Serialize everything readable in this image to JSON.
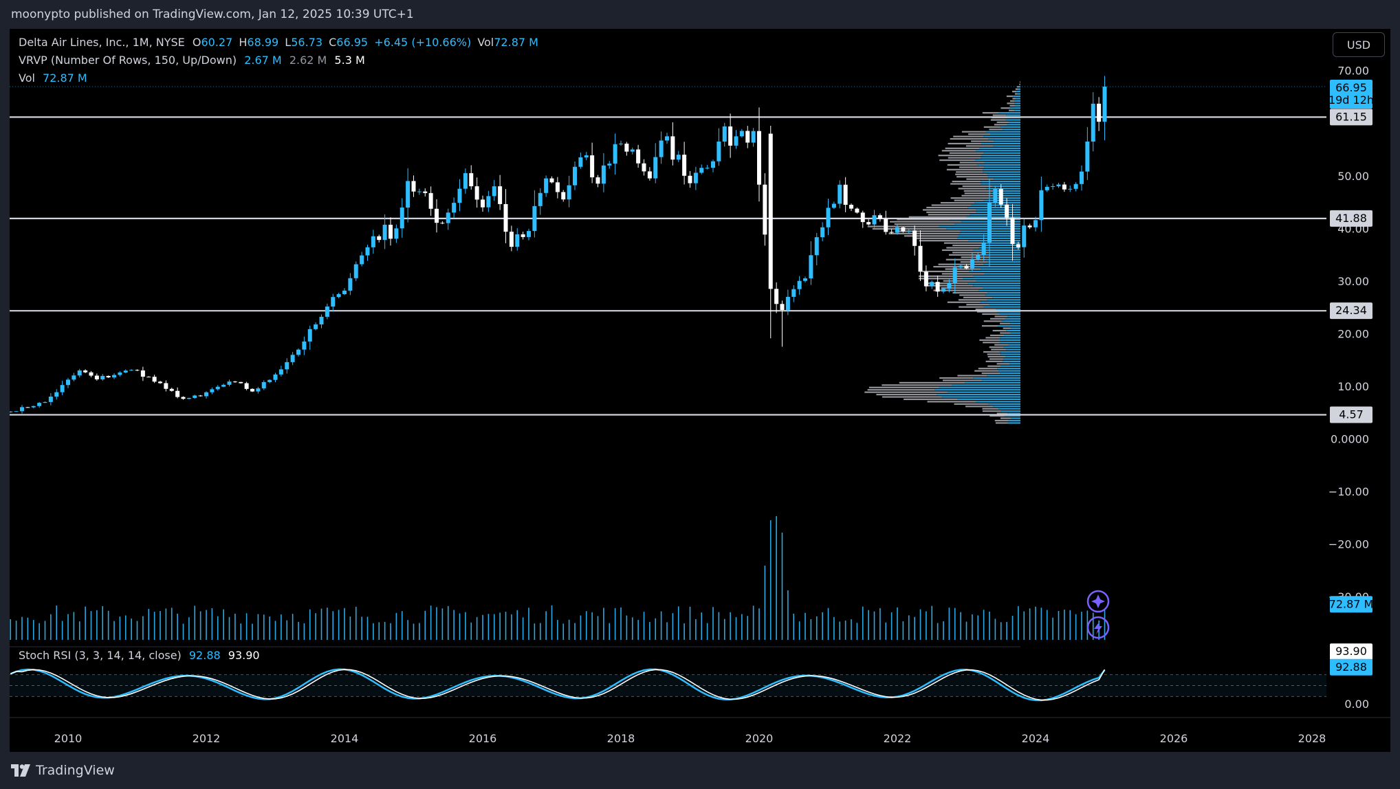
{
  "header": {
    "published": "moonypto published on TradingView.com, Jan 12, 2025 10:39 UTC+1"
  },
  "legend": {
    "symbol": "Delta Air Lines, Inc., 1M, NYSE",
    "o_label": "O",
    "o_val": "60.27",
    "h_label": "H",
    "h_val": "68.99",
    "l_label": "L",
    "l_val": "56.73",
    "c_label": "C",
    "c_val": "66.95",
    "change": "+6.45 (+10.66%)",
    "vol_label": "Vol",
    "vol_val": "72.87 M",
    "vrvp_name": "VRVP (Number Of Rows, 150, Up/Down)",
    "vrvp_up": "2.67 M",
    "vrvp_down": "2.62 M",
    "vrvp_total": "5.3 M",
    "vol2_label": "Vol",
    "vol2_val": "72.87 M",
    "stoch_name": "Stoch RSI (3, 3, 14, 14, close)",
    "stoch_k": "92.88",
    "stoch_d": "93.90"
  },
  "currency_button": "USD",
  "footer": {
    "brand": "TradingView"
  },
  "colors": {
    "up": "#2ebdff",
    "down": "#ffffff",
    "background": "#000000",
    "frame": "#1e222d",
    "level_line": "#d1d4dc",
    "vrvp_up": "#2ebdff",
    "vrvp_down": "#c3c6ce"
  },
  "icons": {
    "logo": "tradingview-logo-icon",
    "assist": "sparkle-icon",
    "alert": "lightning-icon"
  },
  "chart_data": {
    "type": "candlestick",
    "symbol": "DAL",
    "interval": "1M",
    "x_ticks": [
      "2010",
      "2012",
      "2014",
      "2016",
      "2018",
      "2020",
      "2022",
      "2024",
      "2026",
      "2028"
    ],
    "y_ticks": [
      "70.00",
      "50.00",
      "40.00",
      "30.00",
      "20.00",
      "10.00",
      "0.0000",
      "−10.00",
      "−20.00",
      "−30.00"
    ],
    "stoch_ticks": [
      "0.00"
    ],
    "price_labels": {
      "last": "66.95",
      "countdown": "19d 12h"
    },
    "horizontal_levels": [
      {
        "value": 61.15,
        "label": "61.15"
      },
      {
        "value": 41.88,
        "label": "41.88"
      },
      {
        "value": 24.34,
        "label": "24.34"
      },
      {
        "value": 4.57,
        "label": "4.57"
      }
    ],
    "volume_last_label": "72.87 M",
    "stoch_labels": {
      "d": "93.90",
      "k": "92.88"
    },
    "anchors": [
      [
        "2009-03",
        5.2
      ],
      [
        "2009-09",
        7.0
      ],
      [
        "2010-03",
        13.0
      ],
      [
        "2010-06",
        11.3
      ],
      [
        "2010-10",
        12.6
      ],
      [
        "2011-01",
        13.0
      ],
      [
        "2011-06",
        9.5
      ],
      [
        "2011-09",
        7.6
      ],
      [
        "2011-12",
        8.1
      ],
      [
        "2012-03",
        9.9
      ],
      [
        "2012-06",
        10.8
      ],
      [
        "2012-09",
        9.0
      ],
      [
        "2012-12",
        11.2
      ],
      [
        "2013-06",
        18.5
      ],
      [
        "2013-09",
        23.2
      ],
      [
        "2013-12",
        27.5
      ],
      [
        "2014-06",
        38.5
      ],
      [
        "2014-10",
        40.0
      ],
      [
        "2014-12",
        49.0
      ],
      [
        "2015-06",
        41.0
      ],
      [
        "2015-10",
        50.5
      ],
      [
        "2016-01",
        44.0
      ],
      [
        "2016-03",
        48.0
      ],
      [
        "2016-06",
        36.5
      ],
      [
        "2016-09",
        39.5
      ],
      [
        "2016-12",
        49.5
      ],
      [
        "2017-03",
        45.5
      ],
      [
        "2017-06",
        53.5
      ],
      [
        "2017-09",
        48.5
      ],
      [
        "2017-12",
        56.0
      ],
      [
        "2018-03",
        55.0
      ],
      [
        "2018-06",
        49.5
      ],
      [
        "2018-09",
        57.5
      ],
      [
        "2018-12",
        50.0
      ],
      [
        "2019-03",
        51.5
      ],
      [
        "2019-06",
        56.5
      ],
      [
        "2019-09",
        57.5
      ],
      [
        "2019-12",
        58.5
      ],
      [
        "2020-03",
        28.5
      ],
      [
        "2020-05",
        24.5
      ],
      [
        "2020-09",
        30.5
      ],
      [
        "2020-12",
        40.2
      ],
      [
        "2021-03",
        48.3
      ],
      [
        "2021-06",
        43.0
      ],
      [
        "2021-09",
        42.5
      ],
      [
        "2021-12",
        39.2
      ],
      [
        "2022-03",
        39.6
      ],
      [
        "2022-06",
        29.0
      ],
      [
        "2022-09",
        28.5
      ],
      [
        "2022-12",
        32.9
      ],
      [
        "2023-03",
        34.9
      ],
      [
        "2023-06",
        47.5
      ],
      [
        "2023-09",
        37.0
      ],
      [
        "2023-12",
        40.2
      ],
      [
        "2024-03",
        47.9
      ],
      [
        "2024-06",
        47.4
      ],
      [
        "2024-09",
        50.8
      ],
      [
        "2024-10",
        56.5
      ],
      [
        "2024-11",
        63.7
      ],
      [
        "2024-12",
        60.27
      ],
      [
        "2025-01",
        66.95
      ]
    ],
    "last_candle": {
      "date": "2025-01",
      "open": 60.27,
      "high": 68.99,
      "low": 56.73,
      "close": 66.95
    },
    "volume": {
      "baseline_millions": 65,
      "spikes": [
        [
          "2020-03",
          290
        ],
        [
          "2020-04",
          300
        ],
        [
          "2020-05",
          260
        ],
        [
          "2020-02",
          180
        ],
        [
          "2020-06",
          120
        ]
      ],
      "last_millions": 72.87
    },
    "stoch_rsi": {
      "k_last": 92.88,
      "d_last": 93.9
    },
    "vrvp": {
      "rows": 150,
      "up_total": "2.67 M",
      "down_total": "2.62 M",
      "total": "5.3 M"
    }
  }
}
